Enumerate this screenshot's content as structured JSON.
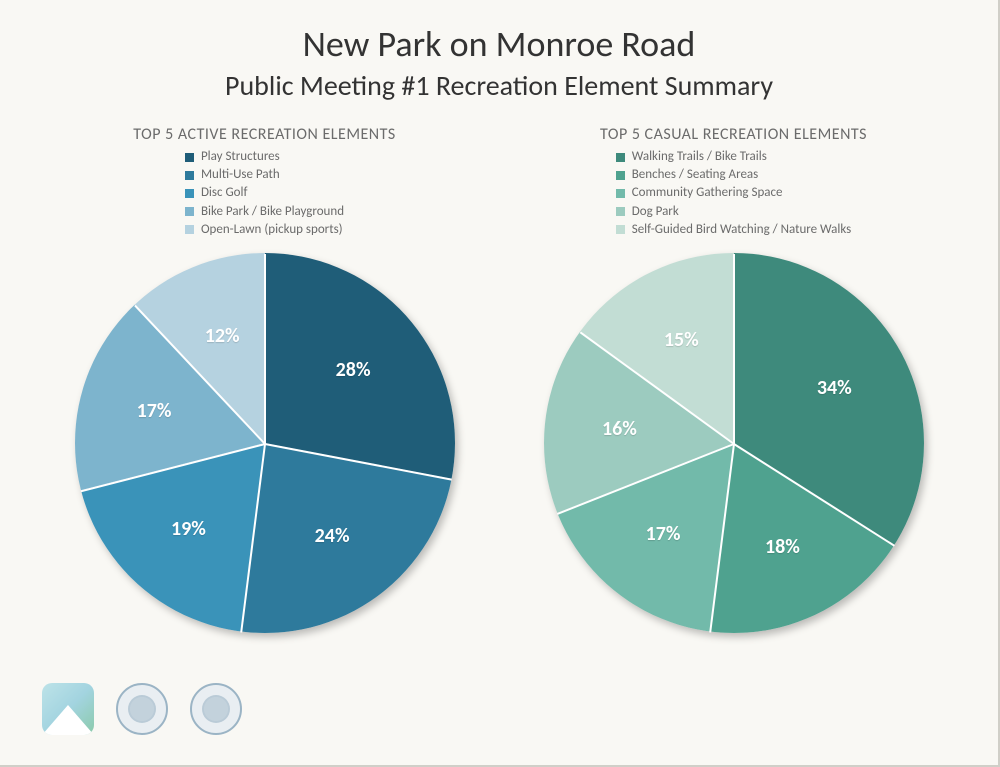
{
  "header": {
    "title": "New Park on Monroe Road",
    "subtitle": "Public Meeting #1 Recreation Element Summary"
  },
  "chart_left": {
    "type": "pie",
    "title": "TOP 5 ACTIVE RECREATION ELEMENTS",
    "background_color": "#f9f8f4",
    "divider_color": "#ffffff",
    "label_color": "#ffffff",
    "label_fontsize": 20,
    "legend_fontsize": 13,
    "legend_color": "#6b6b6b",
    "title_fontsize": 16,
    "title_color": "#6b6b6b",
    "start_angle_deg": 0,
    "slices": [
      {
        "label": "Play Structures",
        "value": 28,
        "pct_text": "28%",
        "color": "#1f5d78"
      },
      {
        "label": "Multi-Use Path",
        "value": 24,
        "pct_text": "24%",
        "color": "#2e7a9c"
      },
      {
        "label": "Disc Golf",
        "value": 19,
        "pct_text": "19%",
        "color": "#3a93b9"
      },
      {
        "label": "Bike Park / Bike Playground",
        "value": 17,
        "pct_text": "17%",
        "color": "#7db4cd"
      },
      {
        "label": "Open-Lawn (pickup sports)",
        "value": 12,
        "pct_text": "12%",
        "color": "#b5d2e0"
      }
    ]
  },
  "chart_right": {
    "type": "pie",
    "title": "TOP 5 CASUAL RECREATION ELEMENTS",
    "background_color": "#f9f8f4",
    "divider_color": "#ffffff",
    "label_color": "#ffffff",
    "label_fontsize": 20,
    "legend_fontsize": 13,
    "legend_color": "#6b6b6b",
    "title_fontsize": 16,
    "title_color": "#6b6b6b",
    "start_angle_deg": 0,
    "slices": [
      {
        "label": "Walking Trails / Bike Trails",
        "value": 34,
        "pct_text": "34%",
        "color": "#3e8a7c"
      },
      {
        "label": "Benches / Seating Areas",
        "value": 18,
        "pct_text": "18%",
        "color": "#4fa28f"
      },
      {
        "label": "Community Gathering Space",
        "value": 17,
        "pct_text": "17%",
        "color": "#72baaa"
      },
      {
        "label": "Dog Park",
        "value": 16,
        "pct_text": "16%",
        "color": "#9ccbbf"
      },
      {
        "label": "Self-Guided Bird Watching / Nature Walks",
        "value": 15,
        "pct_text": "15%",
        "color": "#c2ddd4"
      }
    ]
  }
}
